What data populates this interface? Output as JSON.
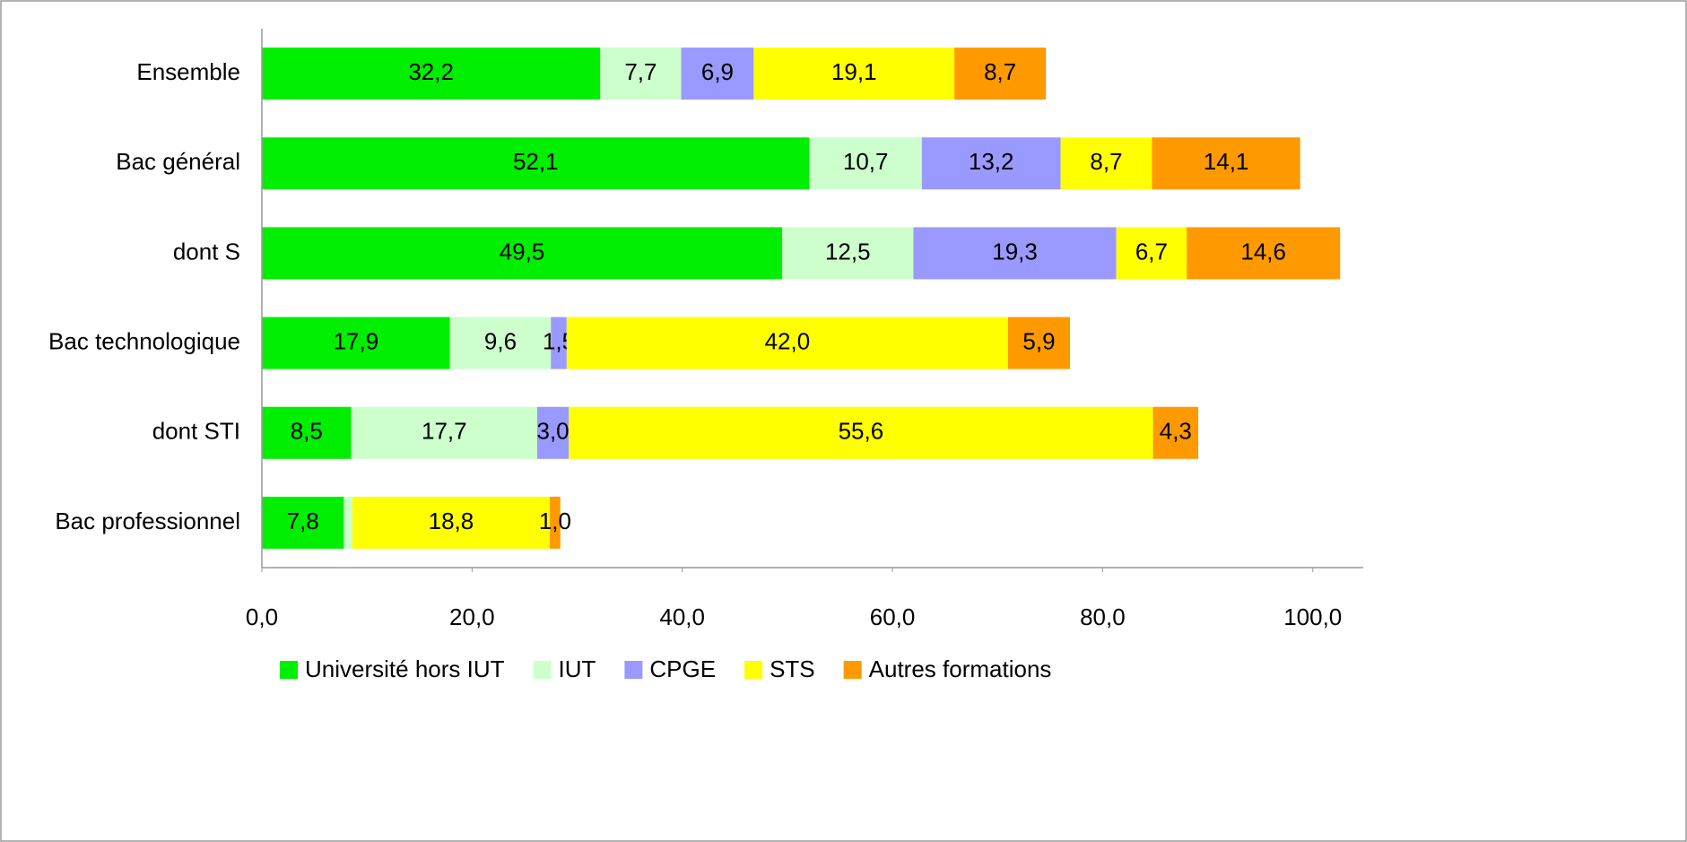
{
  "chart_data": {
    "type": "stacked_bar_horizontal",
    "categories": [
      "Ensemble",
      "Bac général",
      "dont S",
      "Bac technologique",
      "dont STI",
      "Bac professionnel"
    ],
    "series": [
      {
        "name": "Université hors IUT",
        "color": "#00ee00",
        "values": [
          32.2,
          52.1,
          49.5,
          17.9,
          8.5,
          7.8
        ],
        "value_labels": [
          "32,2",
          "52,1",
          "49,5",
          "17,9",
          "8,5",
          "7,8"
        ]
      },
      {
        "name": "IUT",
        "color": "#ccffcc",
        "values": [
          7.7,
          10.7,
          12.5,
          9.6,
          17.7,
          0.8
        ],
        "value_labels": [
          "7,7",
          "10,7",
          "12,5",
          "9,6",
          "17,7",
          null
        ]
      },
      {
        "name": "CPGE",
        "color": "#9999ff",
        "values": [
          6.9,
          13.2,
          19.3,
          1.5,
          3.0,
          null
        ],
        "value_labels": [
          "6,9",
          "13,2",
          "19,3",
          "1,5",
          "3,0",
          null
        ]
      },
      {
        "name": "STS",
        "color": "#ffff00",
        "values": [
          19.1,
          8.7,
          6.7,
          42.0,
          55.6,
          18.8
        ],
        "value_labels": [
          "19,1",
          "8,7",
          "6,7",
          "42,0",
          "55,6",
          "18,8"
        ]
      },
      {
        "name": "Autres formations",
        "color": "#ff9900",
        "values": [
          8.7,
          14.1,
          14.6,
          5.9,
          4.3,
          1.0
        ],
        "value_labels": [
          "8,7",
          "14,1",
          "14,6",
          "5,9",
          "4,3",
          "1,0"
        ]
      }
    ],
    "xlim": [
      0,
      104.8
    ],
    "xticks": [
      {
        "value": 0,
        "label": "0,0"
      },
      {
        "value": 20,
        "label": "20,0"
      },
      {
        "value": 40,
        "label": "40,0"
      },
      {
        "value": 60,
        "label": "60,0"
      },
      {
        "value": 80,
        "label": "80,0"
      },
      {
        "value": 100,
        "label": "100,0"
      }
    ],
    "legend": "bottom"
  }
}
